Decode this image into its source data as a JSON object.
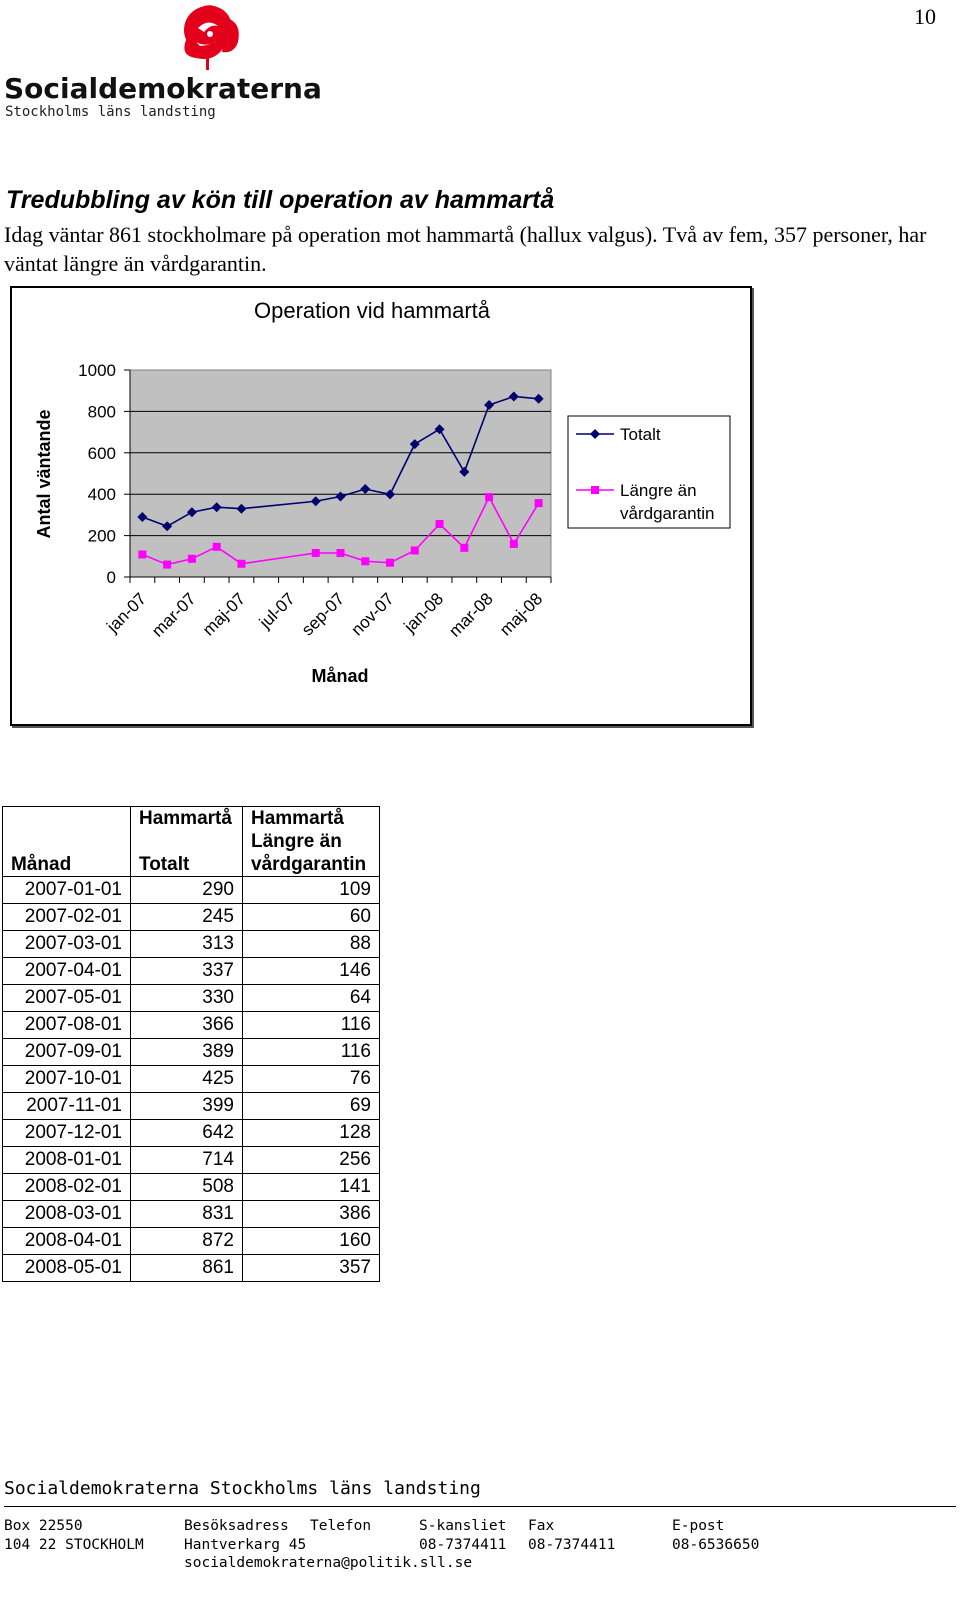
{
  "page_number": "10",
  "logo": {
    "wordmark": "Socialdemokraterna",
    "subtitle": "Stockholms läns landsting",
    "color": "#e3001b"
  },
  "heading": "Tredubbling av kön till operation av hammartå",
  "intro": "Idag väntar 861 stockholmare på operation mot hammartå (hallux valgus). Två av fem, 357 personer, har väntat längre än vårdgarantin.",
  "chart_data": {
    "type": "line",
    "title": "Operation vid hammartå",
    "xlabel": "Månad",
    "ylabel": "Antal väntande",
    "ylim": [
      0,
      1000
    ],
    "yticks": [
      "0",
      "200",
      "400",
      "600",
      "800",
      "1000"
    ],
    "x_tick_labels": [
      "jan-07",
      "mar-07",
      "maj-07",
      "jul-07",
      "sep-07",
      "nov-07",
      "jan-08",
      "mar-08",
      "maj-08"
    ],
    "x": [
      "2007-01",
      "2007-02",
      "2007-03",
      "2007-04",
      "2007-05",
      "2007-08",
      "2007-09",
      "2007-10",
      "2007-11",
      "2007-12",
      "2008-01",
      "2008-02",
      "2008-03",
      "2008-04",
      "2008-05"
    ],
    "grid": "horizontal",
    "legend_position": "right",
    "series": [
      {
        "name": "Totalt",
        "color": "#00006e",
        "marker": "diamond",
        "values": [
          290,
          245,
          313,
          337,
          330,
          366,
          389,
          425,
          399,
          642,
          714,
          508,
          831,
          872,
          861
        ]
      },
      {
        "name": "Längre än vårdgarantin",
        "color": "#ff00ff",
        "marker": "square",
        "values": [
          109,
          60,
          88,
          146,
          64,
          116,
          116,
          76,
          69,
          128,
          256,
          141,
          386,
          160,
          357
        ]
      }
    ]
  },
  "table": {
    "headers": {
      "row1": [
        "",
        "Hammartå",
        "Hammartå"
      ],
      "row2": [
        "Månad",
        "Totalt",
        "Längre än vårdgarantin"
      ]
    },
    "rows": [
      [
        "2007-01-01",
        "290",
        "109"
      ],
      [
        "2007-02-01",
        "245",
        "60"
      ],
      [
        "2007-03-01",
        "313",
        "88"
      ],
      [
        "2007-04-01",
        "337",
        "146"
      ],
      [
        "2007-05-01",
        "330",
        "64"
      ],
      [
        "2007-08-01",
        "366",
        "116"
      ],
      [
        "2007-09-01",
        "389",
        "116"
      ],
      [
        "2007-10-01",
        "425",
        "76"
      ],
      [
        "2007-11-01",
        "399",
        "69"
      ],
      [
        "2007-12-01",
        "642",
        "128"
      ],
      [
        "2008-01-01",
        "714",
        "256"
      ],
      [
        "2008-02-01",
        "508",
        "141"
      ],
      [
        "2008-03-01",
        "831",
        "386"
      ],
      [
        "2008-04-01",
        "872",
        "160"
      ],
      [
        "2008-05-01",
        "861",
        "357"
      ]
    ]
  },
  "footer": {
    "org": "Socialdemokraterna Stockholms läns landsting",
    "labels": {
      "box": "Box 22550",
      "visit": "Besöksadress",
      "phone": "Telefon",
      "office": "S-kansliet",
      "fax": "Fax",
      "email": "E-post"
    },
    "values": {
      "city": "104 22 STOCKHOLM",
      "street": "Hantverkarg 45",
      "office_phone": "08-7374411",
      "fax": "08-7374411",
      "email_phone": "08-6536650",
      "email": "socialdemokraterna@politik.sll.se"
    }
  }
}
